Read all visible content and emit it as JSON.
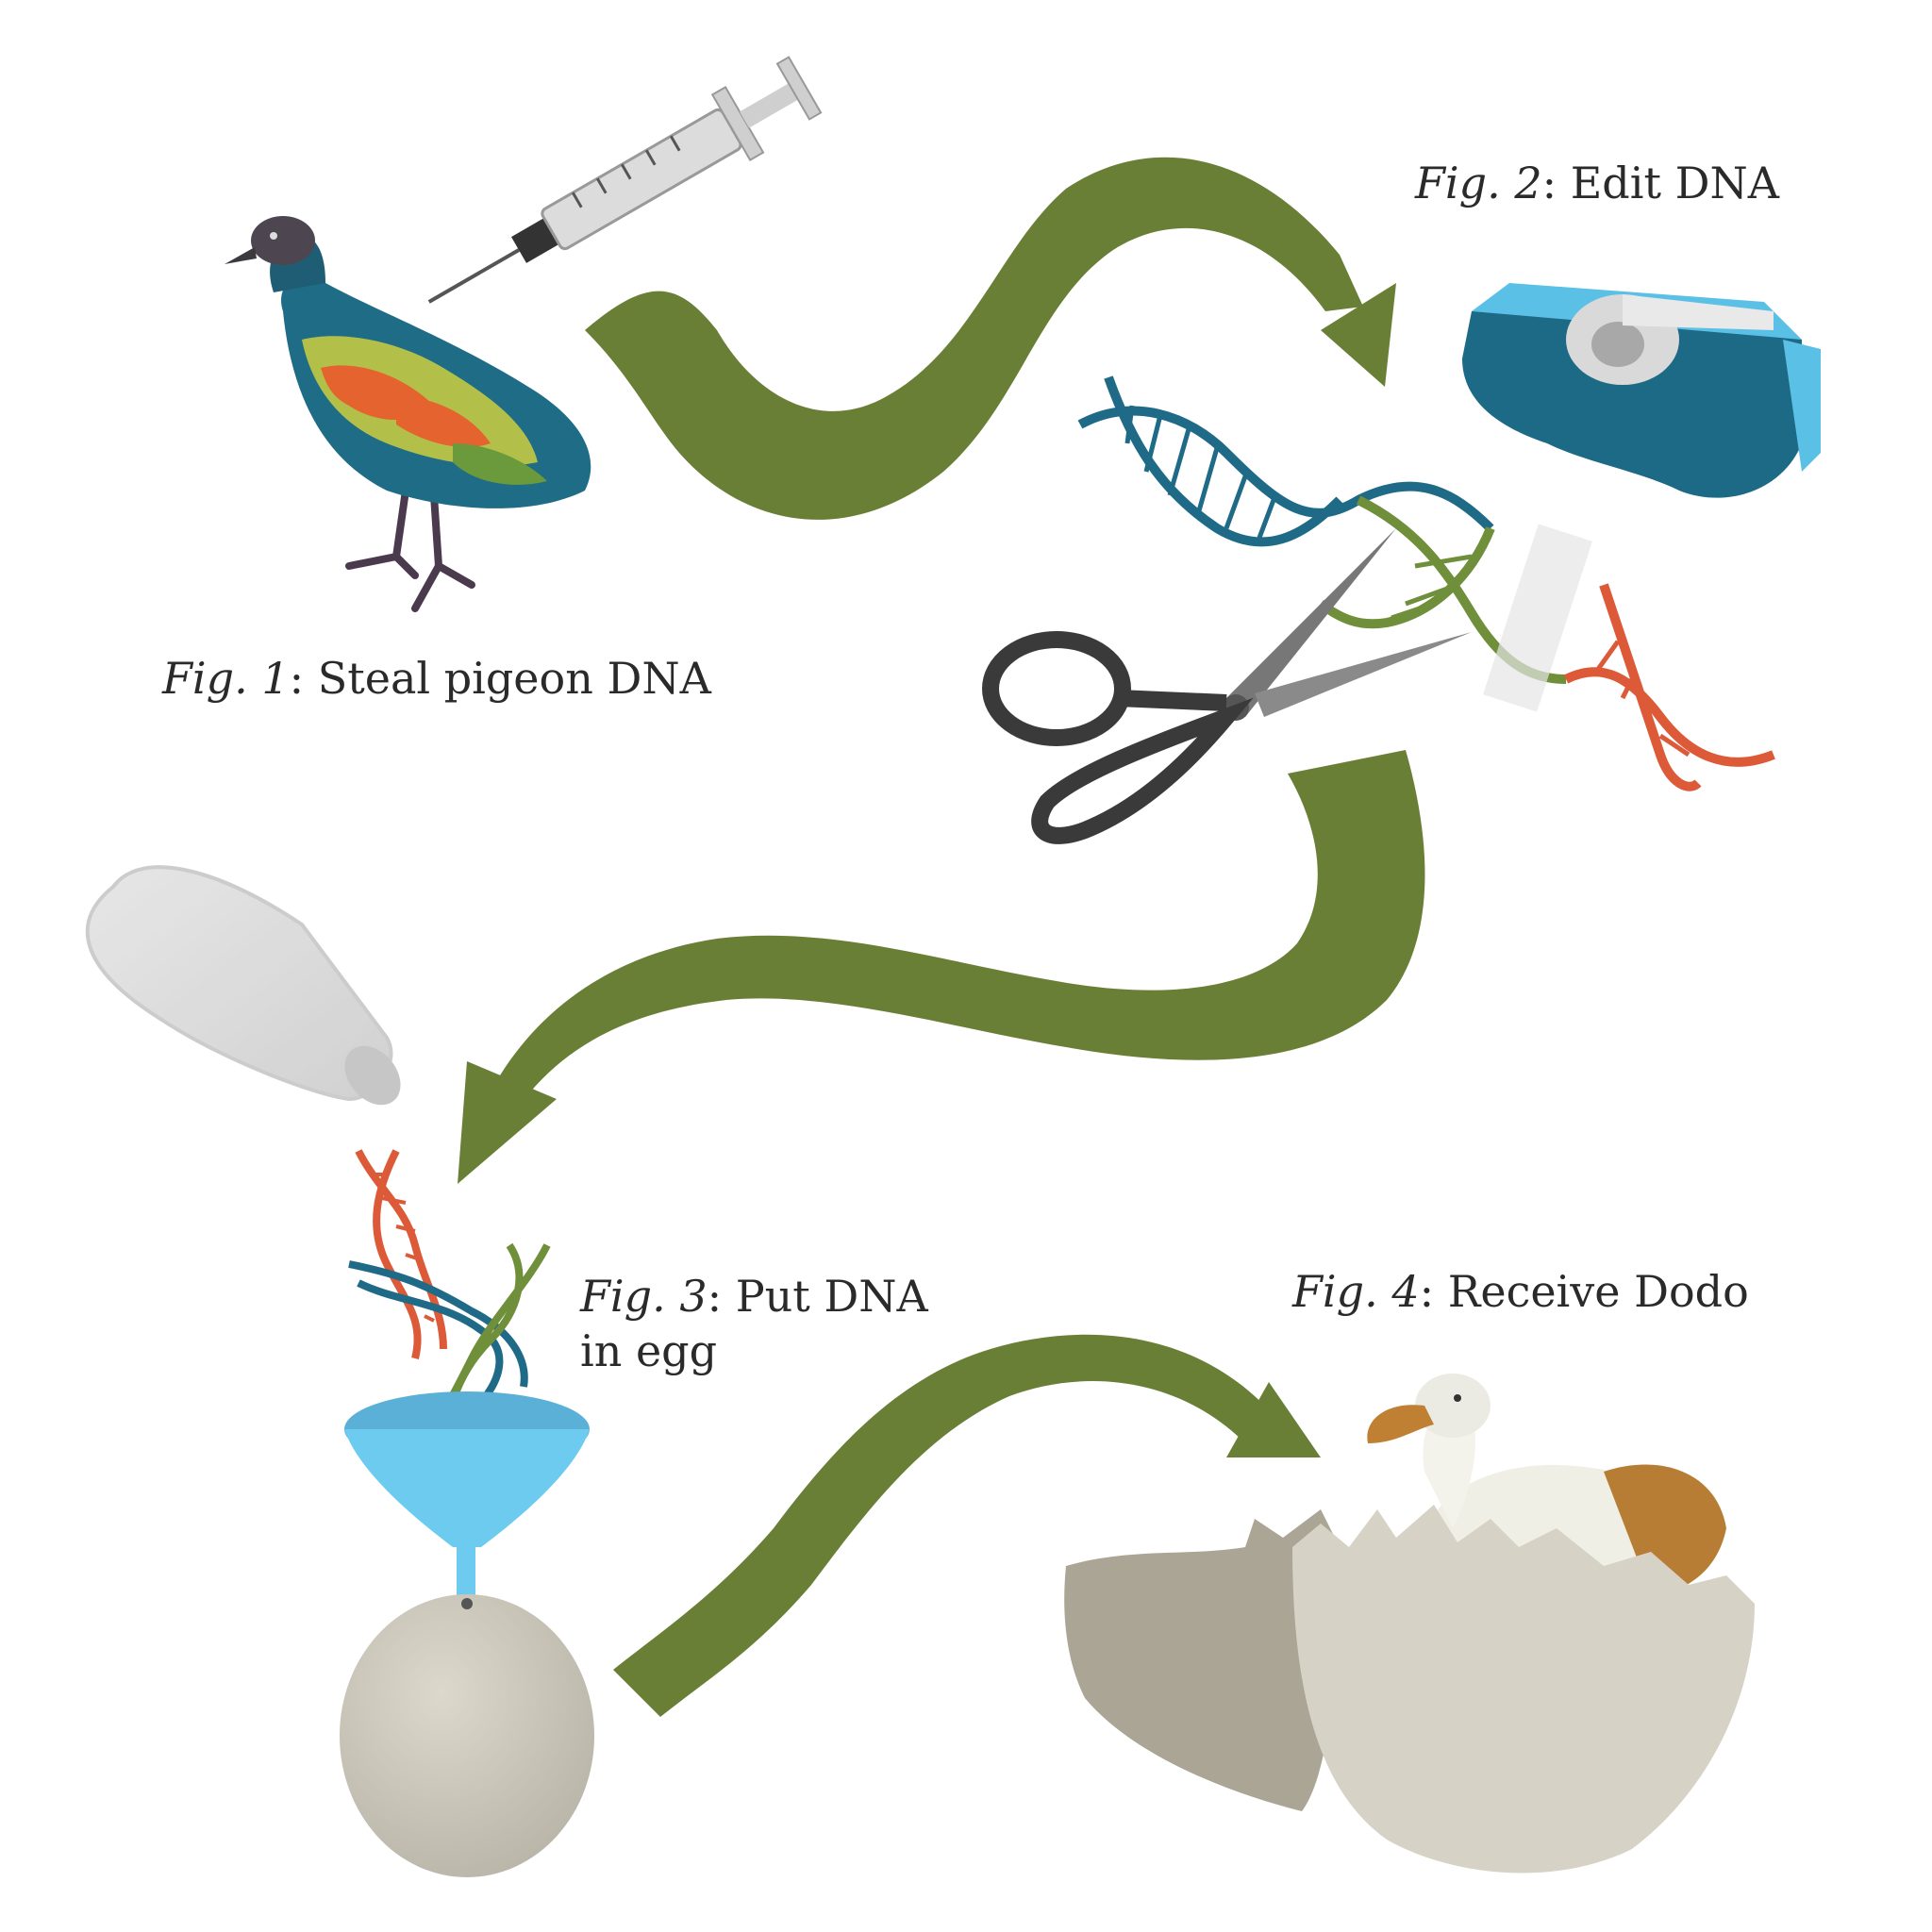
{
  "steps": [
    {
      "fig_label": "Fig. 1",
      "caption": "Steal pigeon DNA"
    },
    {
      "fig_label": "Fig. 2",
      "caption": "Edit DNA"
    },
    {
      "fig_label": "Fig. 3",
      "caption": "Put DNA in egg"
    },
    {
      "fig_label": "Fig. 4",
      "caption": "Receive Dodo"
    }
  ],
  "colors": {
    "arrow": "#6a7f36",
    "dna_blue": "#1f6a87",
    "dna_green": "#6f8f3a",
    "dna_orange": "#dc5a38",
    "tape_dispenser": "#1c6a86",
    "tape_dispenser_light": "#5bc0e6",
    "funnel": "#6ccbef",
    "egg": "#cfcbbd",
    "shell": "#c6c3b6"
  }
}
